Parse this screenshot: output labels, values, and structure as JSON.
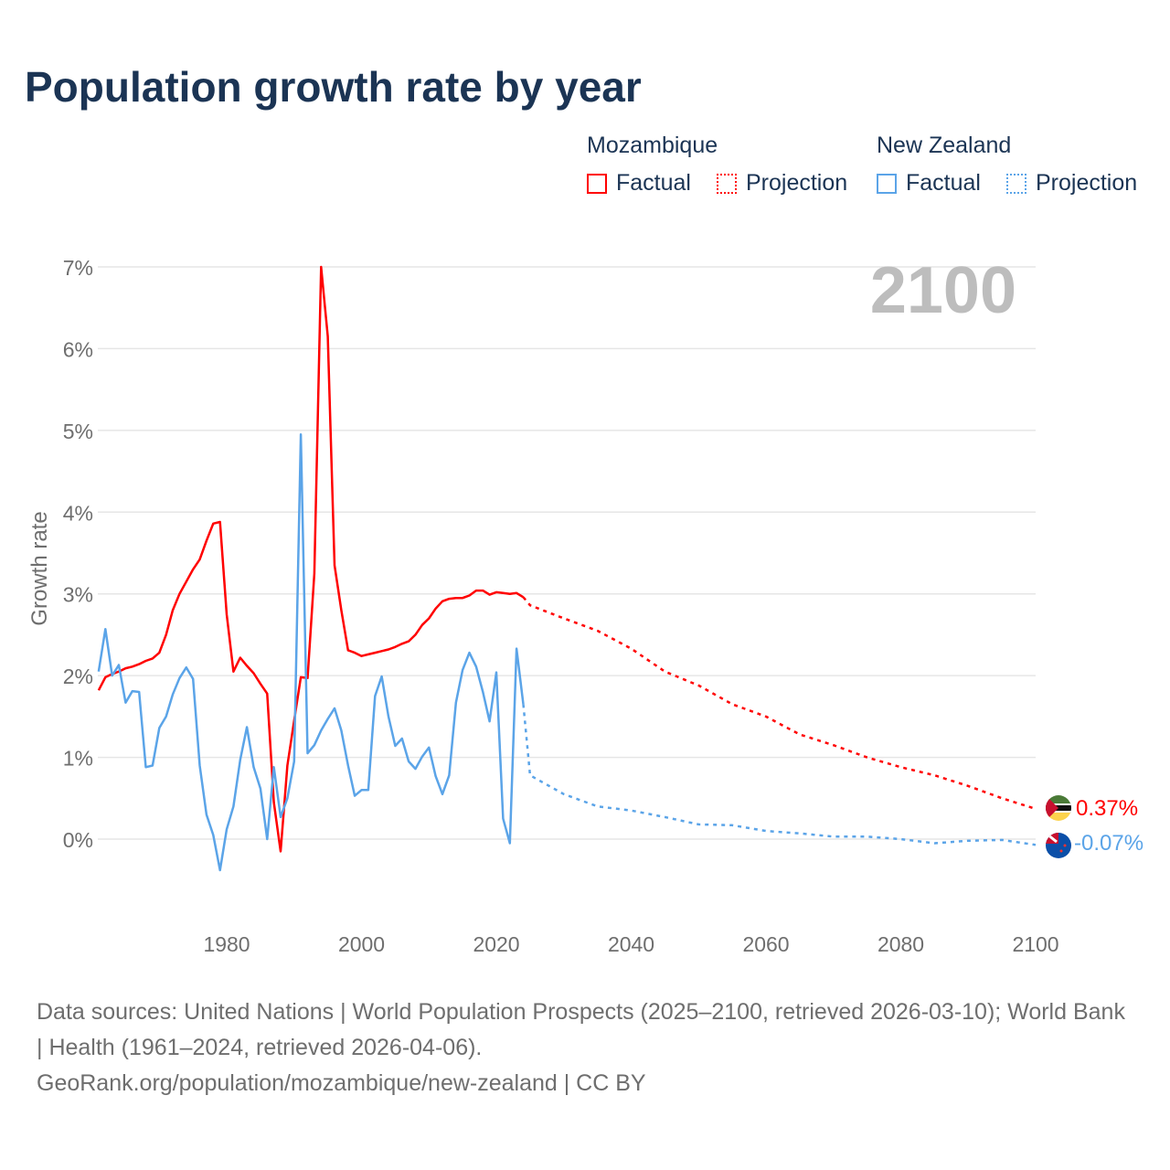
{
  "title": "Population growth rate by year",
  "legend": [
    {
      "country": "Mozambique",
      "factual_label": "Factual",
      "projection_label": "Projection",
      "color": "#ff0000"
    },
    {
      "country": "New Zealand",
      "factual_label": "Factual",
      "projection_label": "Projection",
      "color": "#5ba4e8"
    }
  ],
  "year_watermark": "2100",
  "footer": {
    "sources": "Data sources: United Nations | World Population Prospects (2025–2100, retrieved 2026-03-10); World Bank | Health (1961–2024, retrieved 2026-04-06).",
    "url": "GeoRank.org/population/mozambique/new-zealand | CC BY"
  },
  "chart_data": {
    "type": "line",
    "title": "Population growth rate by year",
    "xlabel": "",
    "ylabel": "Growth rate",
    "xlim": [
      1961,
      2100
    ],
    "ylim": [
      -0.8,
      7
    ],
    "x_ticks": [
      1980,
      2000,
      2020,
      2040,
      2060,
      2080,
      2100
    ],
    "y_ticks": [
      0,
      1,
      2,
      3,
      4,
      5,
      6,
      7
    ],
    "y_tick_labels": [
      "0%",
      "1%",
      "2%",
      "3%",
      "4%",
      "5%",
      "6%",
      "7%"
    ],
    "grid": true,
    "legend_position": "top-right",
    "series": [
      {
        "name": "Mozambique",
        "kind": "factual",
        "color": "#ff0000",
        "start": 1961,
        "values": [
          1.82,
          1.98,
          2.02,
          2.05,
          2.09,
          2.11,
          2.14,
          2.18,
          2.21,
          2.28,
          2.5,
          2.8,
          3.0,
          3.15,
          3.3,
          3.42,
          3.65,
          3.86,
          3.88,
          2.75,
          2.05,
          2.22,
          2.12,
          2.03,
          1.9,
          1.78,
          0.45,
          -0.15,
          0.9,
          1.45,
          1.98,
          1.97,
          3.25,
          7.0,
          6.15,
          3.35,
          2.8,
          2.31,
          2.28,
          2.24,
          2.26,
          2.28,
          2.3,
          2.32,
          2.35,
          2.39,
          2.42,
          2.5,
          2.62,
          2.7,
          2.82,
          2.91,
          2.94,
          2.95,
          2.95,
          2.98,
          3.04,
          3.04,
          2.99,
          3.02,
          3.01,
          3.0,
          3.01,
          2.96
        ]
      },
      {
        "name": "Mozambique",
        "kind": "projection",
        "color": "#ff0000",
        "x": [
          2024,
          2025,
          2030,
          2035,
          2040,
          2045,
          2050,
          2055,
          2060,
          2065,
          2070,
          2075,
          2080,
          2085,
          2090,
          2095,
          2100
        ],
        "values": [
          2.96,
          2.86,
          2.7,
          2.55,
          2.33,
          2.05,
          1.88,
          1.65,
          1.5,
          1.28,
          1.15,
          1.0,
          0.88,
          0.78,
          0.65,
          0.5,
          0.37
        ]
      },
      {
        "name": "New Zealand",
        "kind": "factual",
        "color": "#5ba4e8",
        "start": 1961,
        "values": [
          2.05,
          2.57,
          2.0,
          2.13,
          1.67,
          1.81,
          1.8,
          0.88,
          0.9,
          1.36,
          1.5,
          1.77,
          1.97,
          2.1,
          1.96,
          0.9,
          0.3,
          0.05,
          -0.38,
          0.12,
          0.4,
          0.97,
          1.37,
          0.88,
          0.62,
          0.0,
          0.88,
          0.27,
          0.5,
          0.95,
          4.95,
          1.05,
          1.15,
          1.33,
          1.47,
          1.6,
          1.33,
          0.9,
          0.53,
          0.6,
          0.6,
          1.75,
          1.99,
          1.5,
          1.14,
          1.23,
          0.95,
          0.86,
          1.01,
          1.12,
          0.77,
          0.55,
          0.78,
          1.67,
          2.07,
          2.28,
          2.11,
          1.8,
          1.44,
          2.04,
          0.25,
          -0.05,
          2.33,
          1.65
        ]
      },
      {
        "name": "New Zealand",
        "kind": "projection",
        "color": "#5ba4e8",
        "x": [
          2024,
          2025,
          2030,
          2035,
          2040,
          2045,
          2050,
          2055,
          2060,
          2065,
          2070,
          2075,
          2080,
          2085,
          2090,
          2095,
          2100
        ],
        "values": [
          1.65,
          0.78,
          0.55,
          0.4,
          0.35,
          0.27,
          0.18,
          0.17,
          0.1,
          0.07,
          0.03,
          0.03,
          0.0,
          -0.05,
          -0.02,
          -0.01,
          -0.07
        ]
      }
    ],
    "end_labels": [
      {
        "country": "Mozambique",
        "text": "0.37%",
        "color": "#ff0000"
      },
      {
        "country": "New Zealand",
        "text": "-0.07%",
        "color": "#5ba4e8"
      }
    ]
  }
}
